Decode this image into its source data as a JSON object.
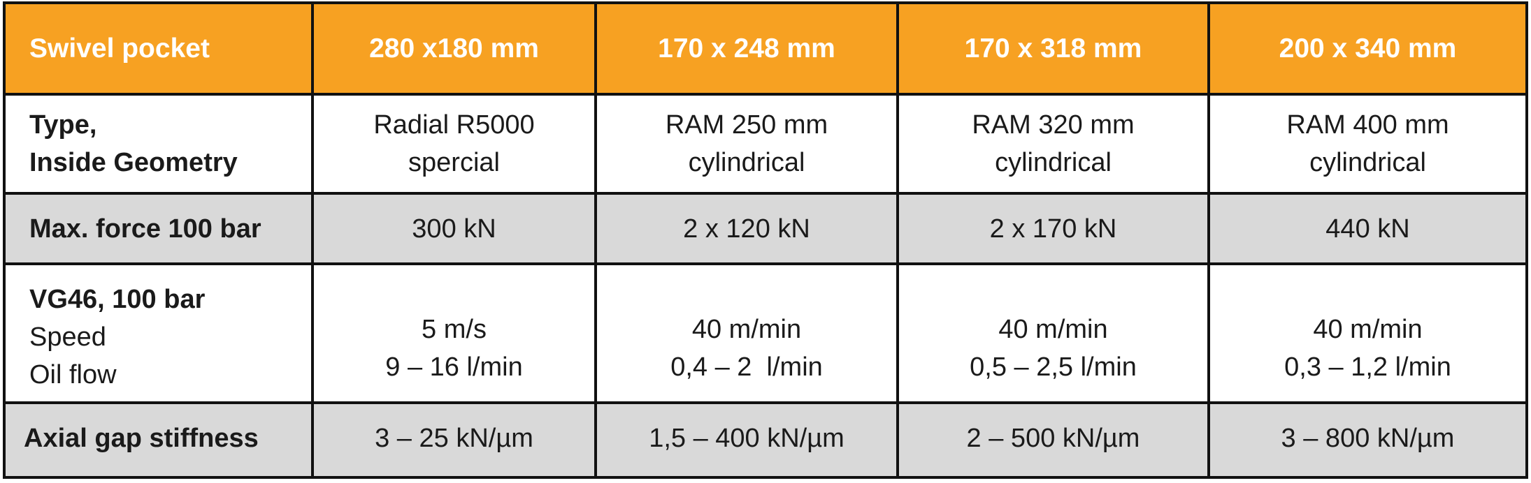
{
  "header": {
    "label": "Swivel pocket",
    "columns": [
      "280 x180 mm",
      "170 x 248 mm",
      "170 x 318 mm",
      "200 x 340 mm"
    ]
  },
  "rows": {
    "type": {
      "label_line1": "Type,",
      "label_line2": "Inside Geometry",
      "values": [
        {
          "line1": "Radial R5000",
          "line2": "spercial"
        },
        {
          "line1": "RAM 250 mm",
          "line2": "cylindrical"
        },
        {
          "line1": "RAM 320 mm",
          "line2": "cylindrical"
        },
        {
          "line1": "RAM 400 mm",
          "line2": "cylindrical"
        }
      ]
    },
    "max_force": {
      "label": "Max. force 100 bar",
      "values": [
        "300 kN",
        "2 x 120 kN",
        "2 x 170 kN",
        "440 kN"
      ]
    },
    "vg46": {
      "label_line1": "VG46, 100 bar",
      "label_line2": "Speed",
      "label_line3": "Oil flow",
      "values": [
        {
          "speed": "5 m/s",
          "flow": "9 – 16 l/min"
        },
        {
          "speed": "40 m/min",
          "flow": "0,4 – 2  l/min"
        },
        {
          "speed": "40 m/min",
          "flow": "0,5 – 2,5 l/min"
        },
        {
          "speed": "40 m/min",
          "flow": "0,3 – 1,2 l/min"
        }
      ]
    },
    "axial": {
      "label": "Axial gap stiffness",
      "values": [
        "3 – 25 kN/µm",
        "1,5 – 400 kN/µm",
        "2 – 500 kN/µm",
        "3 – 800 kN/µm"
      ]
    }
  },
  "colors": {
    "header_bg": "#f7a122",
    "grey_row_bg": "#d9d9d9",
    "border": "#111111"
  }
}
